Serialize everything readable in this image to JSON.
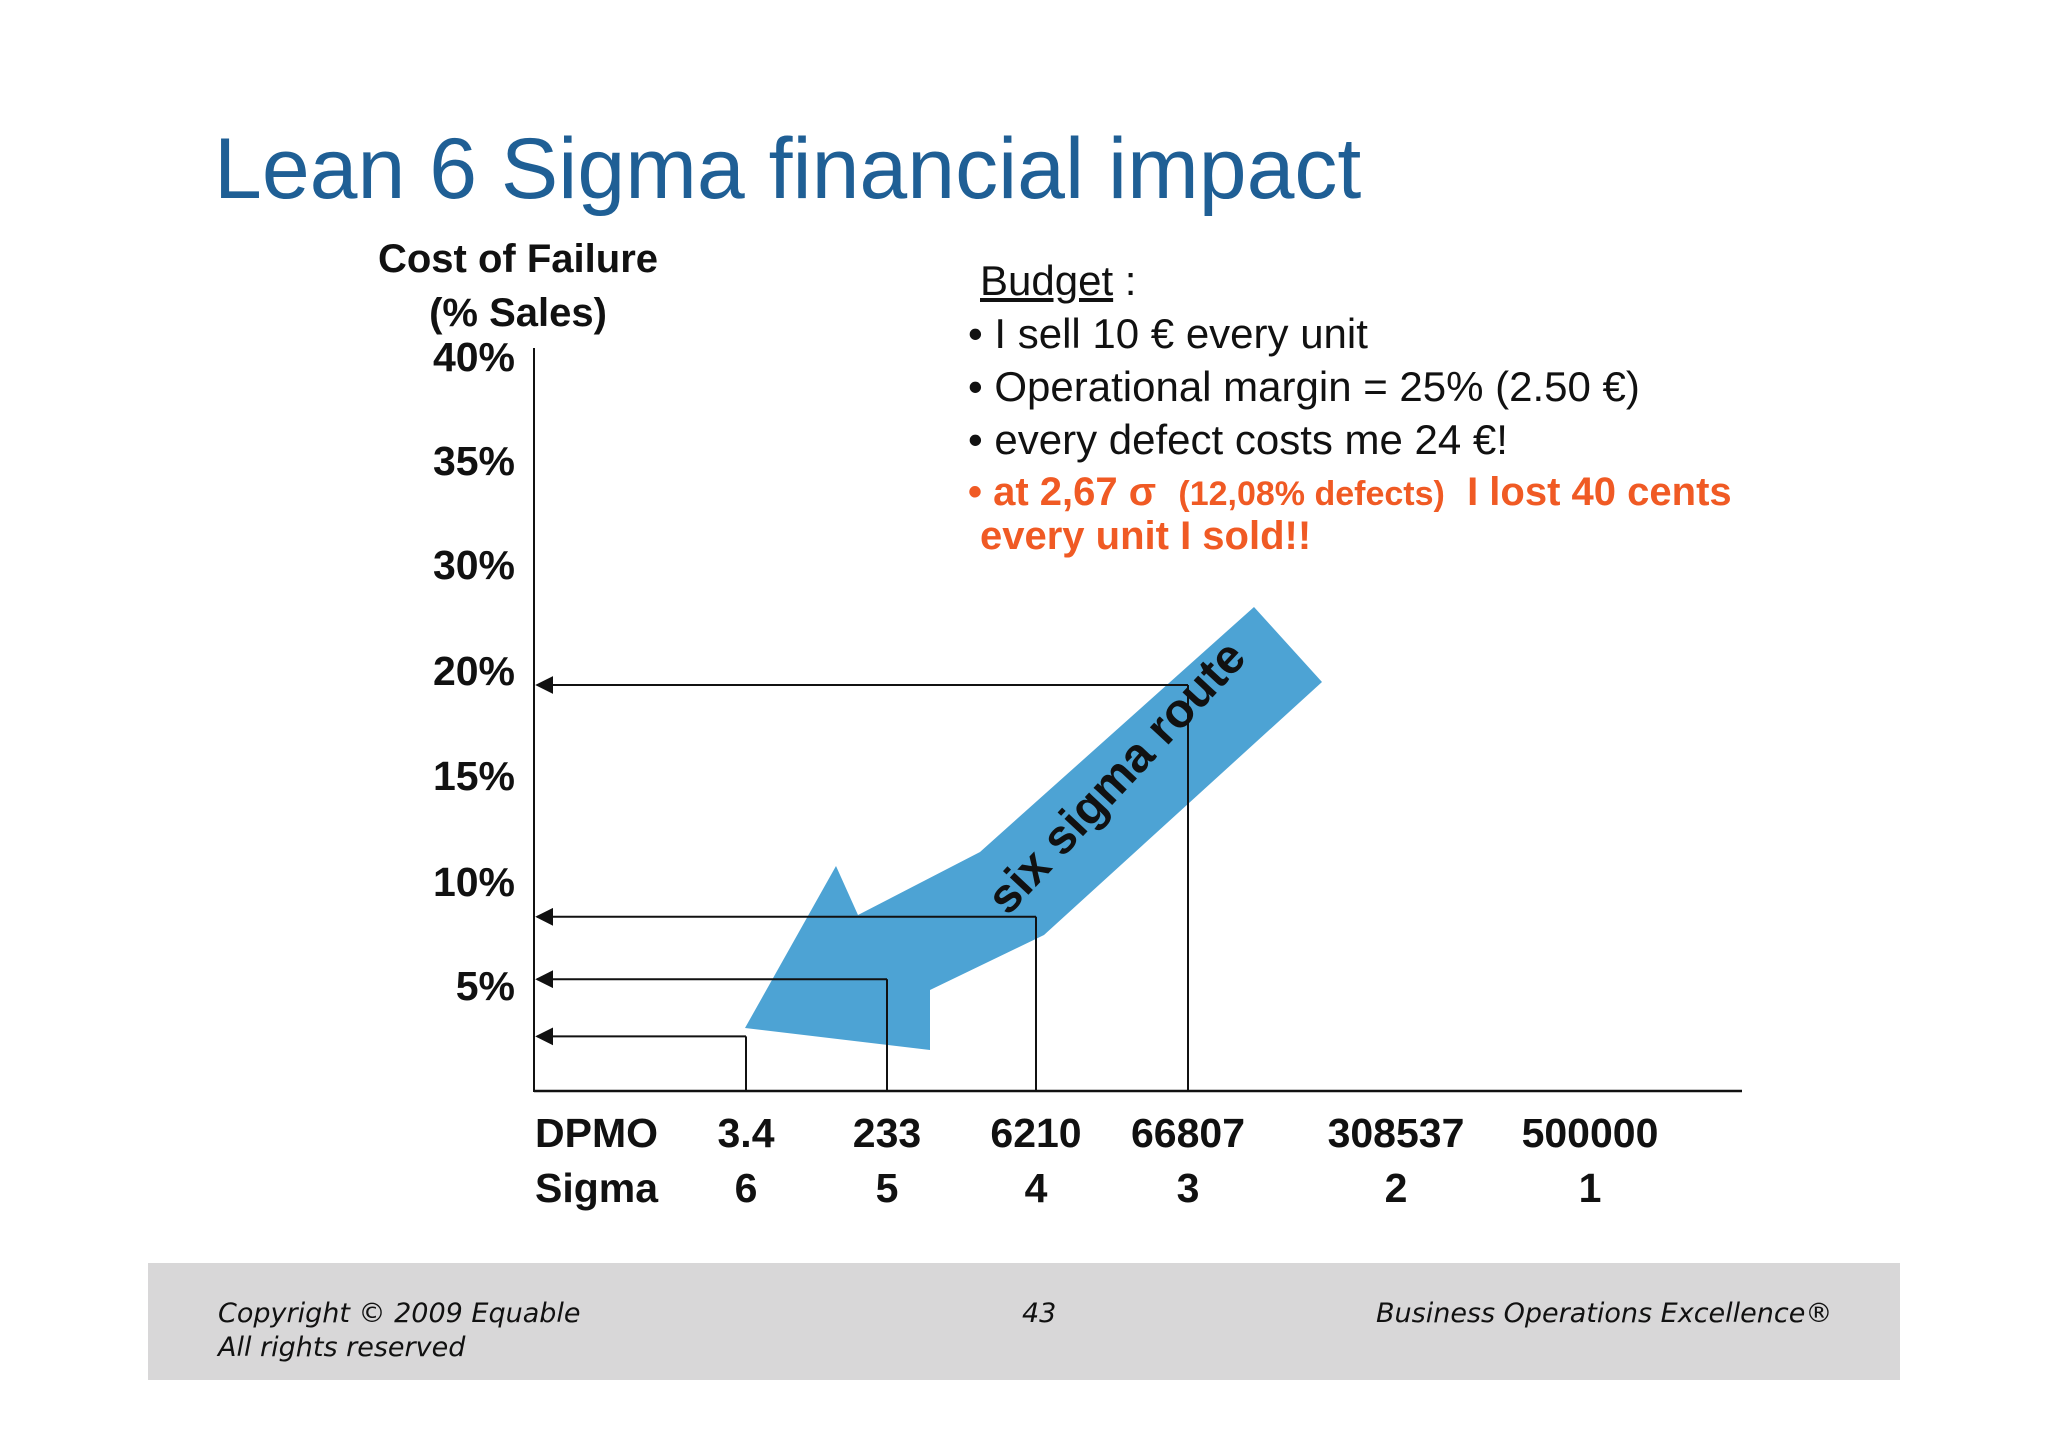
{
  "slide": {
    "title": "Lean 6 Sigma financial impact"
  },
  "budget": {
    "header": "Budget",
    "header_suffix": " :",
    "bullets": [
      "I sell 10 € every unit",
      "Operational margin = 25% (2.50 €)",
      "every defect costs me 24 €!"
    ],
    "highlight_part1": "at 2,67 σ",
    "highlight_part2": "(12,08% defects)",
    "highlight_part3": "I lost 40 cents",
    "highlight_line2": "every unit I sold!!",
    "highlight_color": "#f05a24"
  },
  "arrow": {
    "label": "six sigma route",
    "color": "#4da3d4"
  },
  "chart_data": {
    "type": "line",
    "ylabel_line1": "Cost of Failure",
    "ylabel_line2": "(% Sales)",
    "y_ticks": [
      "40%",
      "35%",
      "30%",
      "20%",
      "15%",
      "10%",
      "5%"
    ],
    "x_row1_label": "DPMO",
    "x_row2_label": "Sigma",
    "categories": [
      {
        "dpmo": "3.4",
        "sigma": "6"
      },
      {
        "dpmo": "233",
        "sigma": "5"
      },
      {
        "dpmo": "6210",
        "sigma": "4"
      },
      {
        "dpmo": "66807",
        "sigma": "3"
      },
      {
        "dpmo": "308537",
        "sigma": "2"
      },
      {
        "dpmo": "500000",
        "sigma": "1"
      }
    ],
    "series": [
      {
        "points": [
          {
            "sigma": 6,
            "cost_pct": 3.0
          },
          {
            "sigma": 5,
            "cost_pct": 6.0
          },
          {
            "sigma": 4,
            "cost_pct": 9.0
          },
          {
            "sigma": 3,
            "cost_pct": 20.0
          }
        ]
      }
    ],
    "grid": false
  },
  "footer": {
    "copyright_line1": "Copyright © 2009 Equable",
    "copyright_line2": "All rights reserved",
    "page_number": "43",
    "brand": "Business Operations Excellence®"
  }
}
